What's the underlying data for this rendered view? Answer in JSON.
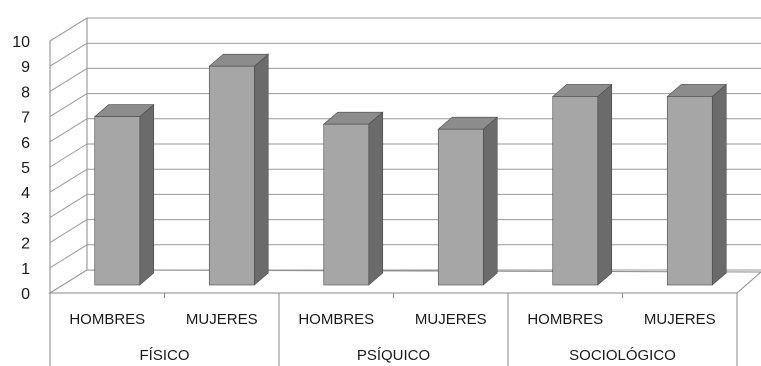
{
  "chart_data": {
    "type": "bar",
    "style": "3d-column",
    "groups": [
      {
        "label": "FÍSICO",
        "bars": [
          {
            "category": "HOMBRES",
            "value": 7.0
          },
          {
            "category": "MUJERES",
            "value": 9.0
          }
        ]
      },
      {
        "label": "PSÍQUICO",
        "bars": [
          {
            "category": "HOMBRES",
            "value": 6.7
          },
          {
            "category": "MUJERES",
            "value": 6.5
          }
        ]
      },
      {
        "label": "SOCIOLÓGICO",
        "bars": [
          {
            "category": "HOMBRES",
            "value": 7.8
          },
          {
            "category": "MUJERES",
            "value": 7.8
          }
        ]
      }
    ],
    "yticks": [
      "0",
      "1",
      "2",
      "3",
      "4",
      "5",
      "6",
      "7",
      "8",
      "9",
      "10"
    ],
    "ylim": [
      0,
      10
    ],
    "title": "",
    "xlabel": "",
    "ylabel": "",
    "grid": true,
    "legend": "none",
    "colors": {
      "bar_front": "#a6a6a6",
      "bar_side": "#6b6b6b",
      "bar_top": "#8c8c8c",
      "grid": "#9a9a9a",
      "axis": "#8a8a8a"
    }
  }
}
